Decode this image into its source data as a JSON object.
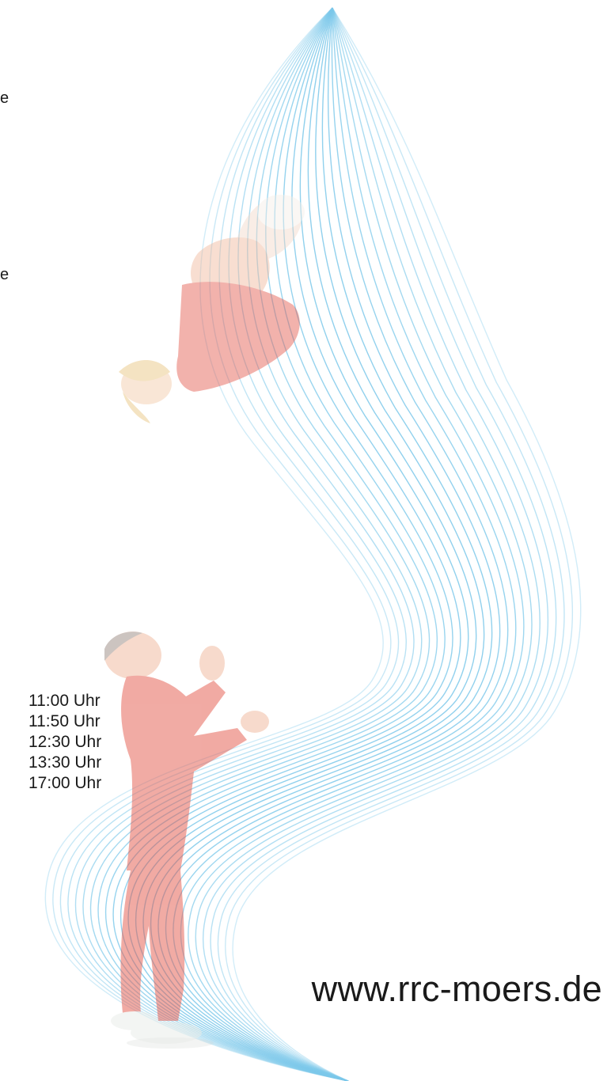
{
  "fragments": [
    "e",
    "e"
  ],
  "schedule": [
    "11:00 Uhr",
    "11:50 Uhr",
    "12:30 Uhr",
    "13:30 Uhr",
    "17:00 Uhr"
  ],
  "website": "www.rrc-moers.de",
  "colors": {
    "wave": "#7cc8ea",
    "athlete_suit": "#e4574a",
    "skin": "#f0b79a",
    "text": "#1a1a1a"
  }
}
